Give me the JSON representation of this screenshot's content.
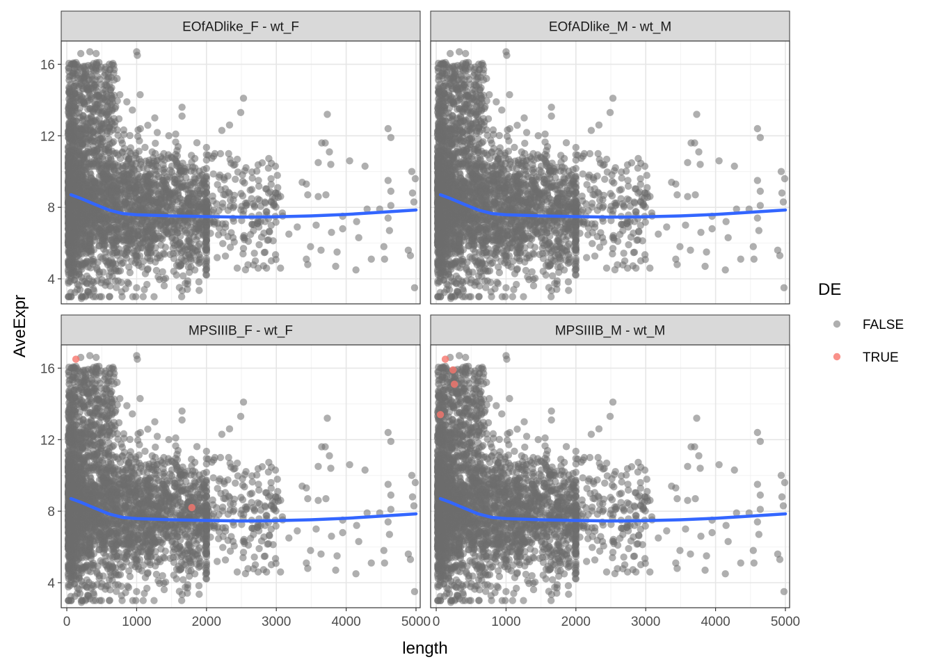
{
  "chart_data": {
    "type": "scatter",
    "facet_layout": "2x2",
    "xlabel": "length",
    "ylabel": "AveExpr",
    "xlim": [
      -80,
      5060
    ],
    "ylim": [
      2.6,
      17.3
    ],
    "x_ticks": [
      0,
      1000,
      2000,
      3000,
      4000,
      5000
    ],
    "y_ticks": [
      4,
      8,
      12,
      16
    ],
    "grid": true,
    "legend": {
      "title": "DE",
      "position": "right",
      "entries": [
        {
          "label": "FALSE",
          "color": "#6e6e6e"
        },
        {
          "label": "TRUE",
          "color": "#f8766d"
        }
      ]
    },
    "point_alpha": 0.55,
    "smooth_color": "#3366ff",
    "panels": [
      {
        "title": "EOfADlike_F - wt_F"
      },
      {
        "title": "EOfADlike_M - wt_M"
      },
      {
        "title": "MPSIIIB_F - wt_F",
        "true_points": [
          [
            130,
            16.5
          ],
          [
            1790,
            8.2
          ]
        ]
      },
      {
        "title": "MPSIIIB_M - wt_M",
        "true_points": [
          [
            130,
            16.5
          ],
          [
            240,
            15.9
          ],
          [
            60,
            13.4
          ],
          [
            260,
            15.1
          ]
        ]
      }
    ],
    "outlier_points": [
      [
        200,
        16.6
      ],
      [
        330,
        16.7
      ],
      [
        420,
        16.6
      ],
      [
        1000,
        16.7
      ],
      [
        1010,
        16.5
      ],
      [
        460,
        16.1
      ],
      [
        720,
        15.2
      ],
      [
        1050,
        14.3
      ],
      [
        860,
        13.9
      ],
      [
        1260,
        13.0
      ],
      [
        1650,
        13.6
      ],
      [
        1650,
        13.1
      ],
      [
        2530,
        14.1
      ],
      [
        2490,
        13.3
      ],
      [
        2220,
        12.3
      ],
      [
        2330,
        12.6
      ],
      [
        3730,
        13.2
      ],
      [
        4600,
        12.4
      ],
      [
        4640,
        11.9
      ],
      [
        3650,
        11.6
      ],
      [
        3700,
        11.6
      ],
      [
        3760,
        11.1
      ],
      [
        3600,
        10.5
      ],
      [
        3780,
        10.4
      ],
      [
        4050,
        10.6
      ],
      [
        4270,
        10.3
      ],
      [
        4940,
        10.0
      ],
      [
        4990,
        9.6
      ],
      [
        3020,
        9.1
      ],
      [
        3370,
        9.4
      ],
      [
        3430,
        9.3
      ],
      [
        3710,
        8.7
      ],
      [
        3600,
        8.6
      ],
      [
        3450,
        8.7
      ],
      [
        4640,
        8.9
      ],
      [
        4640,
        8.1
      ],
      [
        4600,
        9.5
      ],
      [
        4970,
        8.3
      ],
      [
        4950,
        8.8
      ],
      [
        4150,
        7.2
      ],
      [
        4480,
        7.9
      ],
      [
        4600,
        7.4
      ],
      [
        4620,
        6.7
      ],
      [
        3490,
        5.8
      ],
      [
        4360,
        5.1
      ],
      [
        4540,
        5.8
      ],
      [
        4550,
        5.1
      ],
      [
        4890,
        5.6
      ],
      [
        4920,
        5.3
      ],
      [
        4980,
        3.5
      ],
      [
        3870,
        5.5
      ],
      [
        3450,
        4.8
      ],
      [
        3430,
        5.1
      ],
      [
        3850,
        4.7
      ],
      [
        4140,
        4.5
      ],
      [
        3060,
        4.6
      ],
      [
        3640,
        5.6
      ],
      [
        2740,
        4.6
      ],
      [
        2860,
        4.6
      ],
      [
        2700,
        5.0
      ],
      [
        4180,
        6.3
      ],
      [
        3790,
        6.6
      ],
      [
        3950,
        6.8
      ],
      [
        3180,
        6.5
      ],
      [
        3300,
        6.9
      ],
      [
        3570,
        7.0
      ],
      [
        3950,
        7.5
      ],
      [
        4300,
        7.9
      ],
      [
        2840,
        7.2
      ],
      [
        2890,
        8.8
      ],
      [
        2650,
        9.0
      ],
      [
        2750,
        6.9
      ],
      [
        2600,
        6.1
      ],
      [
        2380,
        6.3
      ],
      [
        2530,
        5.7
      ],
      [
        150,
        3.4
      ],
      [
        210,
        2.9
      ],
      [
        330,
        3.1
      ],
      [
        1000,
        3.5
      ],
      [
        1110,
        3.4
      ],
      [
        620,
        3.6
      ],
      [
        780,
        3.8
      ],
      [
        2440,
        4.6
      ]
    ],
    "smooth": [
      [
        60,
        8.7
      ],
      [
        200,
        8.5
      ],
      [
        400,
        8.17
      ],
      [
        600,
        7.85
      ],
      [
        800,
        7.65
      ],
      [
        1000,
        7.58
      ],
      [
        1500,
        7.52
      ],
      [
        2000,
        7.48
      ],
      [
        2500,
        7.45
      ],
      [
        3000,
        7.47
      ],
      [
        3500,
        7.52
      ],
      [
        4000,
        7.6
      ],
      [
        4500,
        7.72
      ],
      [
        5000,
        7.85
      ]
    ]
  }
}
